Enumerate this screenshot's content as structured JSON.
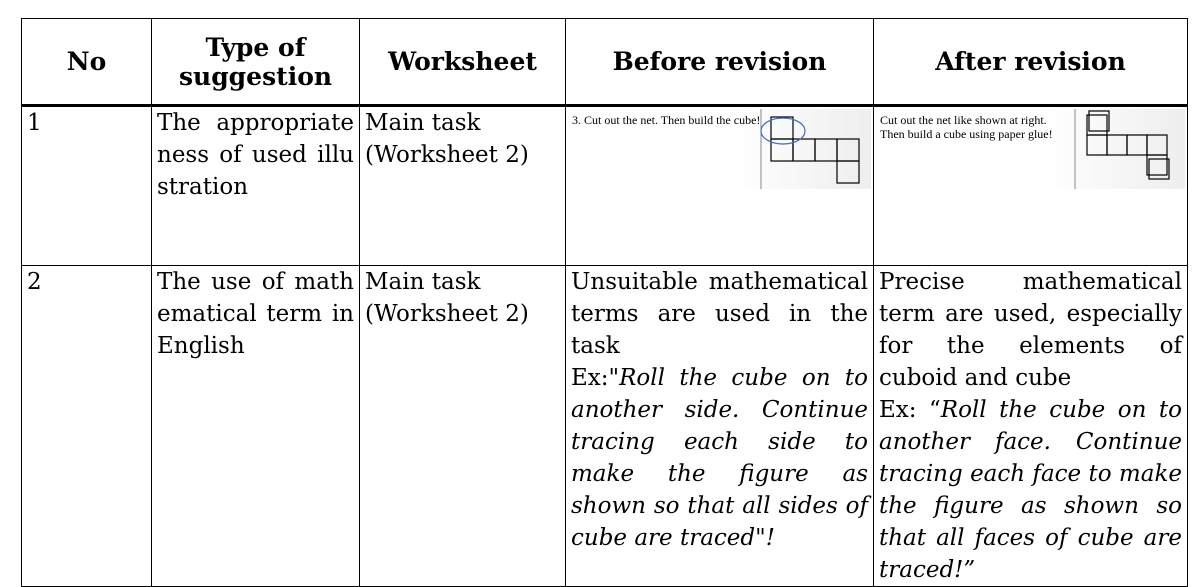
{
  "table": {
    "header": [
      "No",
      "Type of suggestion",
      "Worksheet",
      "Before revision",
      "After revision"
    ],
    "rows": [
      {
        "no": "1",
        "type": "The appropriateness of used illustration",
        "worksheet": "Main task (Worksheet 2)",
        "before": {
          "caption": "3. Cut out the net. Then build the cube!"
        },
        "after": {
          "caption": "Cut out the net like shown at right. Then build a cube using paper glue!"
        }
      },
      {
        "no": "2",
        "type": "The use of mathematical term in English",
        "worksheet": "Main task (Worksheet 2)",
        "before": {
          "text": "Unsuitable mathematical terms are used in the task",
          "example_prefix": "Ex:\"",
          "example": "Roll the cube on to another side. Continue tracing each side to make the figure as shown so that all sides of cube are traced\"!"
        },
        "after": {
          "text": "Precise mathematical term are used, especially for the elements of cuboid and cube",
          "example_prefix": "Ex: “",
          "example": "Roll the cube on to another face. Continue tracing each face to make the figure as shown so that all faces of cube are traced!”"
        }
      }
    ]
  }
}
